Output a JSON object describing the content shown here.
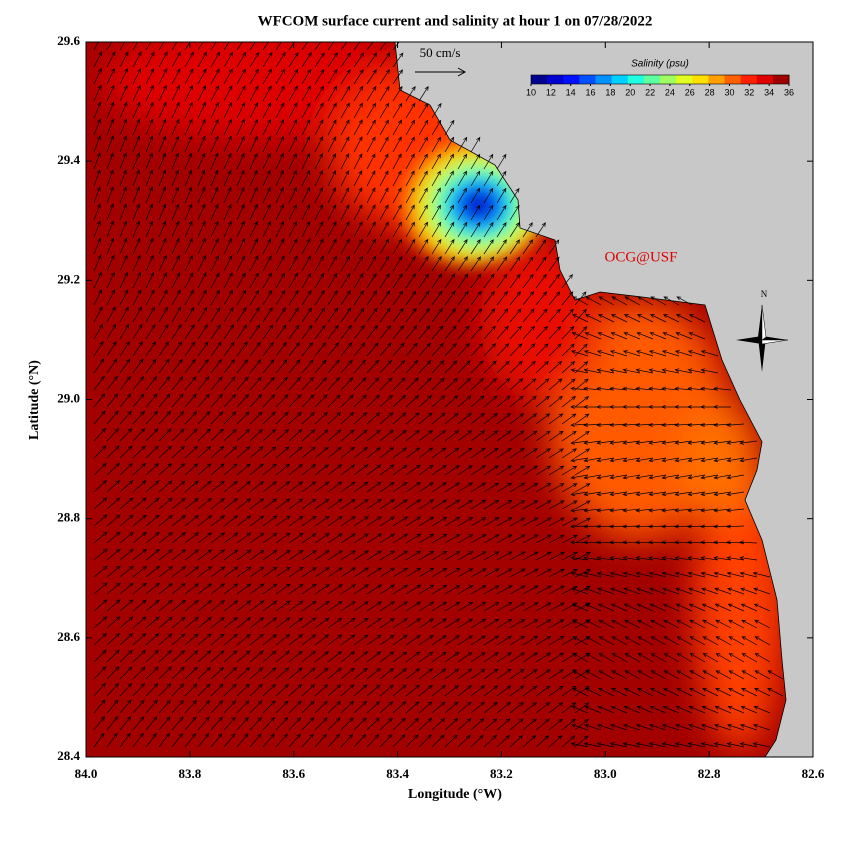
{
  "chart_data": {
    "type": "map",
    "title": "WFCOM surface current and salinity at hour 1 on 07/28/2022",
    "x_label": "Longitude (°W)",
    "y_label": "Latitude (°N)",
    "xlim": [
      84,
      82.6
    ],
    "ylim": [
      28.4,
      29.6
    ],
    "xticks": [
      {
        "value": 84,
        "label": "84.0"
      },
      83.8,
      83.6,
      83.4,
      83.2,
      {
        "value": 83,
        "label": "83.0"
      },
      82.8,
      82.6
    ],
    "yticks": [
      28.4,
      28.6,
      28.8,
      {
        "value": 29,
        "label": "29.0"
      },
      29.2,
      29.4,
      29.6
    ],
    "colorbar": {
      "label": "Salinity (psu)",
      "ticks": [
        10,
        12,
        14,
        16,
        18,
        20,
        22,
        24,
        26,
        28,
        30,
        32,
        34,
        36
      ],
      "colors": [
        "#00008f",
        "#0000cf",
        "#0010ff",
        "#0050ff",
        "#0090ff",
        "#00d0ff",
        "#20ffdf",
        "#60ff9f",
        "#a0ff60",
        "#e0ff20",
        "#ffdf00",
        "#ff9f00",
        "#ff6000",
        "#ff2000",
        "#df0000",
        "#9f0000"
      ]
    },
    "scale_label": "50 cm/s",
    "credit": "OCG@USF",
    "compass": "N"
  }
}
